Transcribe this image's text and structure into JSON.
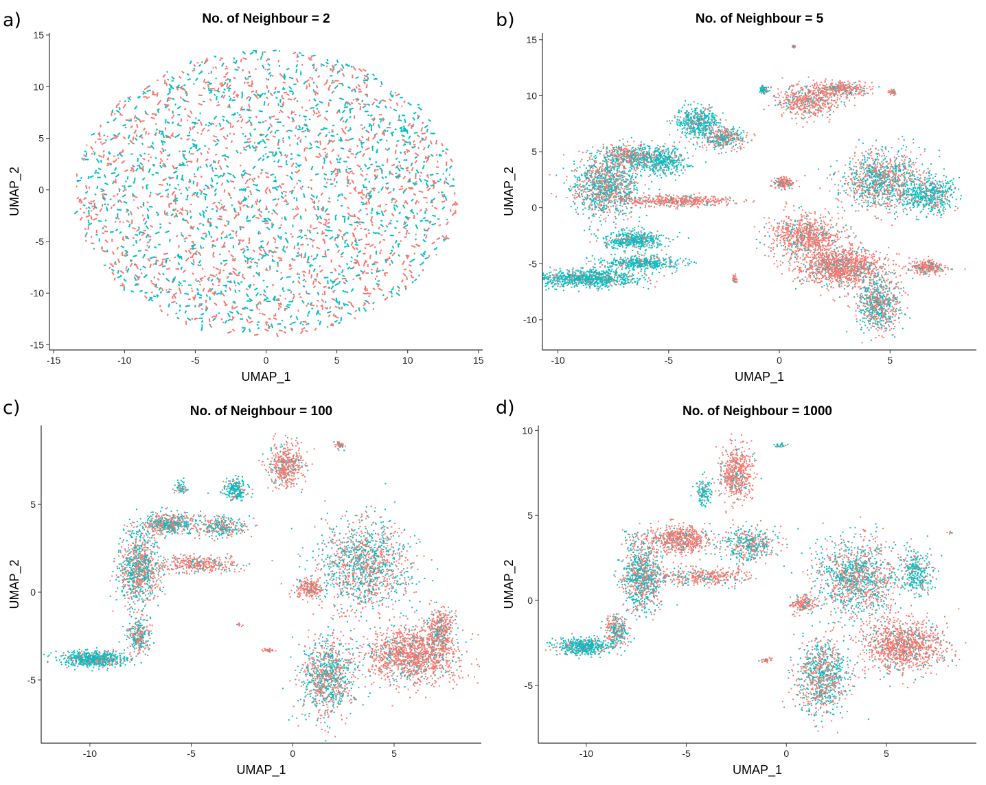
{
  "chart_data": [
    {
      "type": "scatter",
      "panel_label": "a)",
      "title": "No. of Neighbour = 2",
      "xlabel": "UMAP_1",
      "ylabel": "UMAP_2",
      "xlim": [
        -15.3,
        15.3
      ],
      "ylim": [
        -15.5,
        15.2
      ],
      "xticks": [
        -15,
        -10,
        -5,
        0,
        5,
        10,
        15
      ],
      "yticks": [
        -15,
        -10,
        -5,
        0,
        5,
        10,
        15
      ],
      "grid": false,
      "legend": "none",
      "series_colors": [
        "#F8766D",
        "#00BFC4"
      ],
      "shape": "diffuse disc",
      "blobs": [
        {
          "cx": 0,
          "cy": -0.2,
          "rx": 13.5,
          "ry": 13.8,
          "n": 2600,
          "color": "mixed"
        }
      ]
    },
    {
      "type": "scatter",
      "panel_label": "b)",
      "title": "No. of Neighbour = 5",
      "xlabel": "UMAP_1",
      "ylabel": "UMAP_2",
      "xlim": [
        -10.7,
        8.9
      ],
      "ylim": [
        -12.7,
        15.6
      ],
      "xticks": [
        -10,
        -5,
        0,
        5
      ],
      "yticks": [
        -10,
        -5,
        0,
        5,
        10,
        15
      ],
      "grid": false,
      "legend": "none",
      "series_colors": [
        "#F8766D",
        "#00BFC4"
      ],
      "blobs": [
        {
          "cx": -8.6,
          "cy": -6.3,
          "rx": 2.3,
          "ry": 0.75,
          "n": 900,
          "color": "teal"
        },
        {
          "cx": -6.2,
          "cy": -4.9,
          "rx": 1.8,
          "ry": 0.6,
          "n": 450,
          "color": "teal"
        },
        {
          "cx": -7.8,
          "cy": 1.8,
          "rx": 1.5,
          "ry": 2.5,
          "n": 1100,
          "color": "mixed"
        },
        {
          "cx": -6.8,
          "cy": 4.6,
          "rx": 1.3,
          "ry": 1.0,
          "n": 500,
          "color": "mixed"
        },
        {
          "cx": -5.2,
          "cy": 4.2,
          "rx": 1.1,
          "ry": 1.2,
          "n": 400,
          "color": "teal"
        },
        {
          "cx": -4.5,
          "cy": 0.6,
          "rx": 2.2,
          "ry": 0.5,
          "n": 450,
          "color": "salmon"
        },
        {
          "cx": -6.6,
          "cy": -2.9,
          "rx": 1.3,
          "ry": 0.8,
          "n": 500,
          "color": "teal"
        },
        {
          "cx": -3.7,
          "cy": 7.7,
          "rx": 0.9,
          "ry": 1.3,
          "n": 450,
          "color": "teal"
        },
        {
          "cx": -2.5,
          "cy": 6.2,
          "rx": 1.1,
          "ry": 0.9,
          "n": 350,
          "color": "mixed"
        },
        {
          "cx": 1.3,
          "cy": 9.6,
          "rx": 1.4,
          "ry": 1.4,
          "n": 550,
          "color": "salmon"
        },
        {
          "cx": 2.8,
          "cy": 10.6,
          "rx": 1.2,
          "ry": 0.6,
          "n": 300,
          "color": "salmon"
        },
        {
          "cx": -0.7,
          "cy": 10.5,
          "rx": 0.25,
          "ry": 0.4,
          "n": 60,
          "color": "teal"
        },
        {
          "cx": 5.1,
          "cy": 10.3,
          "rx": 0.2,
          "ry": 0.3,
          "n": 40,
          "color": "salmon"
        },
        {
          "cx": 0.7,
          "cy": 14.4,
          "rx": 0.15,
          "ry": 0.1,
          "n": 12,
          "color": "salmon"
        },
        {
          "cx": 1.2,
          "cy": -2.5,
          "rx": 1.6,
          "ry": 1.9,
          "n": 800,
          "color": "salmon"
        },
        {
          "cx": 2.8,
          "cy": -5.3,
          "rx": 1.9,
          "ry": 1.7,
          "n": 1200,
          "color": "salmon"
        },
        {
          "cx": 4.5,
          "cy": -8.5,
          "rx": 1.0,
          "ry": 2.5,
          "n": 700,
          "color": "mixed"
        },
        {
          "cx": 4.6,
          "cy": 2.4,
          "rx": 1.9,
          "ry": 2.6,
          "n": 1100,
          "color": "mixed"
        },
        {
          "cx": 6.8,
          "cy": 1.2,
          "rx": 1.2,
          "ry": 1.6,
          "n": 500,
          "color": "teal"
        },
        {
          "cx": 6.7,
          "cy": -5.3,
          "rx": 0.8,
          "ry": 0.6,
          "n": 260,
          "color": "salmon"
        },
        {
          "cx": 0.2,
          "cy": 2.2,
          "rx": 0.5,
          "ry": 0.5,
          "n": 160,
          "color": "salmon"
        },
        {
          "cx": -2.0,
          "cy": -6.4,
          "rx": 0.12,
          "ry": 0.35,
          "n": 30,
          "color": "salmon"
        }
      ]
    },
    {
      "type": "scatter",
      "panel_label": "c)",
      "title": "No. of Neighbour = 100",
      "xlabel": "UMAP_1",
      "ylabel": "UMAP_2",
      "xlim": [
        -12.4,
        9.3
      ],
      "ylim": [
        -8.6,
        9.5
      ],
      "xticks": [
        -10,
        -5,
        0,
        5
      ],
      "yticks": [
        -5,
        0,
        5
      ],
      "grid": false,
      "legend": "none",
      "series_colors": [
        "#F8766D",
        "#00BFC4"
      ],
      "blobs": [
        {
          "cx": -9.8,
          "cy": -3.8,
          "rx": 1.6,
          "ry": 0.45,
          "n": 700,
          "color": "teal"
        },
        {
          "cx": -7.6,
          "cy": -2.5,
          "rx": 0.5,
          "ry": 1.0,
          "n": 260,
          "color": "mixed"
        },
        {
          "cx": -7.6,
          "cy": 1.3,
          "rx": 1.0,
          "ry": 2.2,
          "n": 900,
          "color": "mixed"
        },
        {
          "cx": -6.0,
          "cy": 3.9,
          "rx": 1.4,
          "ry": 0.6,
          "n": 500,
          "color": "mixed"
        },
        {
          "cx": -4.7,
          "cy": 1.6,
          "rx": 2.0,
          "ry": 0.45,
          "n": 350,
          "color": "salmon"
        },
        {
          "cx": -3.5,
          "cy": 3.7,
          "rx": 1.2,
          "ry": 0.6,
          "n": 280,
          "color": "mixed"
        },
        {
          "cx": -2.8,
          "cy": 5.8,
          "rx": 0.6,
          "ry": 0.6,
          "n": 220,
          "color": "teal"
        },
        {
          "cx": -5.5,
          "cy": 6.0,
          "rx": 0.3,
          "ry": 0.4,
          "n": 60,
          "color": "teal"
        },
        {
          "cx": -0.3,
          "cy": 7.2,
          "rx": 0.8,
          "ry": 1.2,
          "n": 450,
          "color": "salmon"
        },
        {
          "cx": 2.3,
          "cy": 8.4,
          "rx": 0.3,
          "ry": 0.2,
          "n": 40,
          "color": "salmon"
        },
        {
          "cx": 0.8,
          "cy": 0.2,
          "rx": 0.7,
          "ry": 0.5,
          "n": 200,
          "color": "salmon"
        },
        {
          "cx": 3.6,
          "cy": 1.4,
          "rx": 2.2,
          "ry": 2.6,
          "n": 1300,
          "color": "mixed"
        },
        {
          "cx": 5.8,
          "cy": -3.6,
          "rx": 2.2,
          "ry": 1.6,
          "n": 1300,
          "color": "salmon"
        },
        {
          "cx": 1.7,
          "cy": -4.8,
          "rx": 1.3,
          "ry": 2.2,
          "n": 900,
          "color": "mixed"
        },
        {
          "cx": 7.3,
          "cy": -2.2,
          "rx": 0.7,
          "ry": 1.3,
          "n": 400,
          "color": "salmon"
        },
        {
          "cx": -1.2,
          "cy": -3.3,
          "rx": 0.3,
          "ry": 0.1,
          "n": 30,
          "color": "salmon"
        },
        {
          "cx": -2.6,
          "cy": -1.8,
          "rx": 0.15,
          "ry": 0.1,
          "n": 10,
          "color": "salmon"
        }
      ]
    },
    {
      "type": "scatter",
      "panel_label": "d)",
      "title": "No. of Neighbour = 1000",
      "xlabel": "UMAP_1",
      "ylabel": "UMAP_2",
      "xlim": [
        -12.4,
        9.5
      ],
      "ylim": [
        -8.4,
        10.3
      ],
      "xticks": [
        -10,
        -5,
        0,
        5
      ],
      "yticks": [
        -5,
        0,
        5,
        10
      ],
      "grid": false,
      "legend": "none",
      "series_colors": [
        "#F8766D",
        "#00BFC4"
      ],
      "blobs": [
        {
          "cx": -10.1,
          "cy": -2.7,
          "rx": 1.3,
          "ry": 0.45,
          "n": 500,
          "color": "teal"
        },
        {
          "cx": -8.5,
          "cy": -1.8,
          "rx": 0.6,
          "ry": 1.0,
          "n": 260,
          "color": "mixed"
        },
        {
          "cx": -7.2,
          "cy": 1.5,
          "rx": 1.0,
          "ry": 2.2,
          "n": 850,
          "color": "mixed"
        },
        {
          "cx": -5.3,
          "cy": 3.6,
          "rx": 1.6,
          "ry": 0.8,
          "n": 600,
          "color": "salmon"
        },
        {
          "cx": -4.2,
          "cy": 1.4,
          "rx": 2.2,
          "ry": 0.5,
          "n": 360,
          "color": "salmon"
        },
        {
          "cx": -1.8,
          "cy": 3.3,
          "rx": 1.3,
          "ry": 1.0,
          "n": 420,
          "color": "mixed"
        },
        {
          "cx": -2.5,
          "cy": 7.5,
          "rx": 0.8,
          "ry": 1.6,
          "n": 500,
          "color": "salmon"
        },
        {
          "cx": -4.1,
          "cy": 6.4,
          "rx": 0.4,
          "ry": 0.8,
          "n": 120,
          "color": "teal"
        },
        {
          "cx": -0.3,
          "cy": 9.1,
          "rx": 0.25,
          "ry": 0.15,
          "n": 25,
          "color": "teal"
        },
        {
          "cx": 0.9,
          "cy": -0.2,
          "rx": 0.6,
          "ry": 0.5,
          "n": 160,
          "color": "salmon"
        },
        {
          "cx": 3.5,
          "cy": 1.3,
          "rx": 2.0,
          "ry": 2.3,
          "n": 1200,
          "color": "mixed"
        },
        {
          "cx": 5.8,
          "cy": -2.7,
          "rx": 2.1,
          "ry": 1.5,
          "n": 1100,
          "color": "salmon"
        },
        {
          "cx": 1.8,
          "cy": -4.5,
          "rx": 1.3,
          "ry": 2.2,
          "n": 850,
          "color": "mixed"
        },
        {
          "cx": 6.5,
          "cy": 1.6,
          "rx": 0.8,
          "ry": 1.2,
          "n": 300,
          "color": "teal"
        },
        {
          "cx": -1.0,
          "cy": -3.5,
          "rx": 0.35,
          "ry": 0.1,
          "n": 30,
          "color": "salmon"
        },
        {
          "cx": 8.2,
          "cy": 4.0,
          "rx": 0.15,
          "ry": 0.1,
          "n": 8,
          "color": "salmon"
        }
      ]
    }
  ]
}
